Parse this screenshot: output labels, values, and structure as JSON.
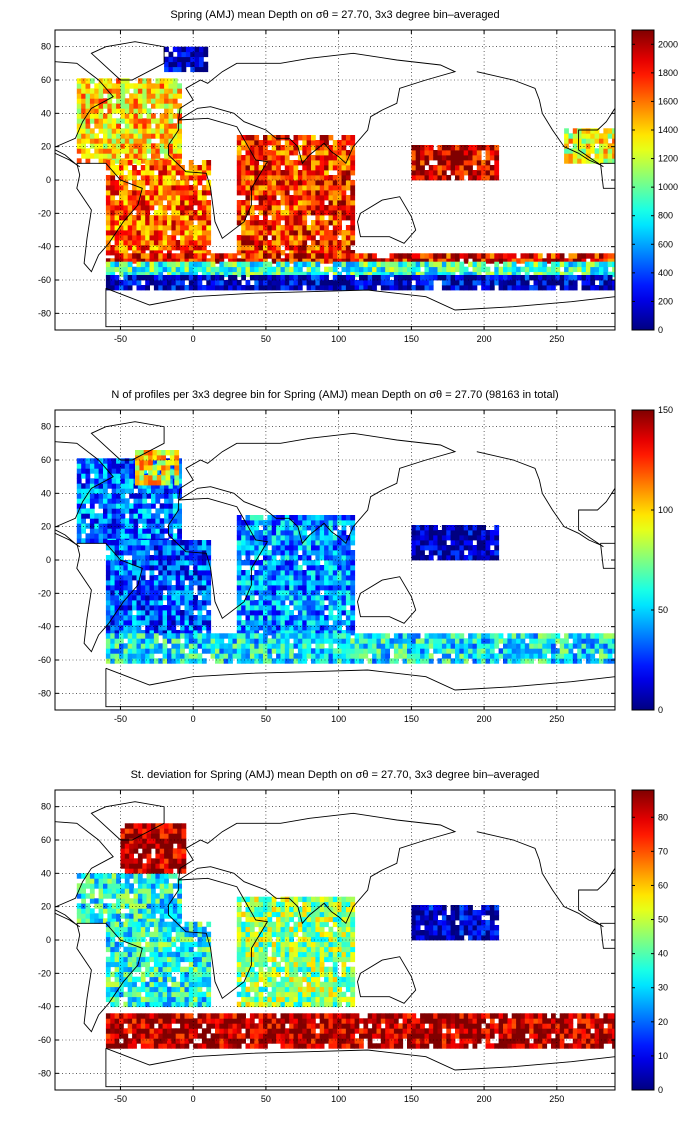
{
  "chart_data": [
    {
      "type": "heatmap",
      "title": "Spring (AMJ) mean Depth on σθ = 27.70, 3x3 degree bin–averaged",
      "xlim": [
        -95,
        290
      ],
      "ylim": [
        -90,
        90
      ],
      "xticks": [
        -50,
        0,
        50,
        100,
        150,
        200,
        250
      ],
      "yticks": [
        80,
        60,
        40,
        20,
        0,
        -20,
        -40,
        -60,
        -80
      ],
      "colorbar": {
        "min": 0,
        "max": 2100,
        "ticks": [
          2000,
          1800,
          1600,
          1400,
          1200,
          1000,
          800,
          600,
          400,
          200,
          0
        ]
      },
      "colormap": "jet",
      "grid": true,
      "background": "#ffffff",
      "regions": [
        {
          "lon": [
            -80,
            -10
          ],
          "lat": [
            10,
            60
          ],
          "value": 1400
        },
        {
          "lon": [
            -60,
            10
          ],
          "lat": [
            -45,
            10
          ],
          "value": 1650
        },
        {
          "lon": [
            30,
            110
          ],
          "lat": [
            -45,
            25
          ],
          "value": 1750
        },
        {
          "lon": [
            -60,
            290
          ],
          "lat": [
            -50,
            -45
          ],
          "value": 1850
        },
        {
          "lon": [
            -60,
            290
          ],
          "lat": [
            -58,
            -50
          ],
          "value": 900
        },
        {
          "lon": [
            -60,
            290
          ],
          "lat": [
            -66,
            -58
          ],
          "value": 150
        },
        {
          "lon": [
            -20,
            10
          ],
          "lat": [
            65,
            80
          ],
          "value": 80
        },
        {
          "lon": [
            150,
            210
          ],
          "lat": [
            0,
            20
          ],
          "value": 1950
        },
        {
          "lon": [
            255,
            290
          ],
          "lat": [
            10,
            30
          ],
          "value": 1300
        }
      ]
    },
    {
      "type": "heatmap",
      "title": "N of profiles per 3x3 degree bin for Spring (AMJ) mean Depth on σθ = 27.70 (98163 in total)",
      "xlim": [
        -95,
        290
      ],
      "ylim": [
        -90,
        90
      ],
      "xticks": [
        -50,
        0,
        50,
        100,
        150,
        200,
        250
      ],
      "yticks": [
        80,
        60,
        40,
        20,
        0,
        -20,
        -40,
        -60,
        -80
      ],
      "colorbar": {
        "min": 0,
        "max": 150,
        "ticks": [
          150,
          100,
          50,
          0
        ]
      },
      "colormap": "jet",
      "grid": true,
      "background": "#ffffff",
      "regions": [
        {
          "lon": [
            -80,
            -10
          ],
          "lat": [
            10,
            60
          ],
          "value": 35
        },
        {
          "lon": [
            -40,
            -10
          ],
          "lat": [
            45,
            65
          ],
          "value": 95
        },
        {
          "lon": [
            -60,
            10
          ],
          "lat": [
            -45,
            10
          ],
          "value": 30
        },
        {
          "lon": [
            30,
            110
          ],
          "lat": [
            -45,
            25
          ],
          "value": 40
        },
        {
          "lon": [
            -60,
            290
          ],
          "lat": [
            -62,
            -45
          ],
          "value": 55
        },
        {
          "lon": [
            150,
            210
          ],
          "lat": [
            0,
            20
          ],
          "value": 5
        }
      ]
    },
    {
      "type": "heatmap",
      "title": "St. deviation for Spring (AMJ) mean Depth on σθ = 27.70, 3x3 degree bin–averaged",
      "xlim": [
        -95,
        290
      ],
      "ylim": [
        -90,
        90
      ],
      "xticks": [
        -50,
        0,
        50,
        100,
        150,
        200,
        250
      ],
      "yticks": [
        80,
        60,
        40,
        20,
        0,
        -20,
        -40,
        -60,
        -80
      ],
      "colorbar": {
        "min": 0,
        "max": 88,
        "ticks": [
          80,
          70,
          60,
          50,
          40,
          30,
          20,
          10,
          0
        ]
      },
      "colormap": "jet",
      "grid": true,
      "background": "#ffffff",
      "regions": [
        {
          "lon": [
            -80,
            -10
          ],
          "lat": [
            10,
            40
          ],
          "value": 35
        },
        {
          "lon": [
            -50,
            -5
          ],
          "lat": [
            40,
            70
          ],
          "value": 85
        },
        {
          "lon": [
            -60,
            10
          ],
          "lat": [
            -40,
            10
          ],
          "value": 35
        },
        {
          "lon": [
            30,
            110
          ],
          "lat": [
            -40,
            25
          ],
          "value": 45
        },
        {
          "lon": [
            -60,
            290
          ],
          "lat": [
            -65,
            -45
          ],
          "value": 85
        },
        {
          "lon": [
            150,
            210
          ],
          "lat": [
            0,
            20
          ],
          "value": 5
        }
      ]
    }
  ]
}
